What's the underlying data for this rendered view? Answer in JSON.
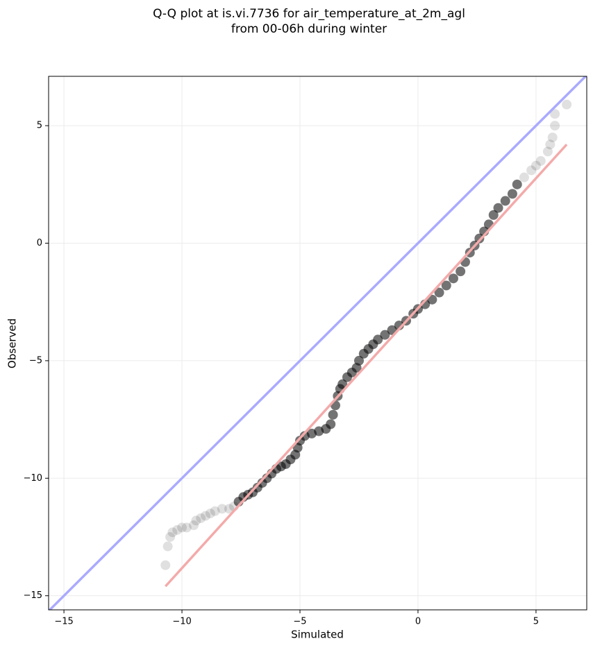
{
  "chart_data": {
    "type": "scatter",
    "title": "Q-Q plot at is.vi.7736 for air_temperature_at_2m_agl",
    "subtitle": "from 00-06h during winter",
    "x_label": "Simulated",
    "y_label": "Observed",
    "xlim": [
      -15.65,
      7.15
    ],
    "ylim": [
      -15.6,
      7.1
    ],
    "xticks": [
      {
        "value": -15,
        "label": "−15"
      },
      {
        "value": -10,
        "label": "−10"
      },
      {
        "value": -5,
        "label": "−5"
      },
      0,
      5
    ],
    "yticks": [
      {
        "value": -15,
        "label": "−15"
      },
      {
        "value": -10,
        "label": "−10"
      },
      {
        "value": -5,
        "label": "−5"
      },
      0,
      5
    ],
    "grid": true,
    "points": {
      "color": "#000000",
      "x": [
        -10.7,
        -10.6,
        -10.5,
        -10.4,
        -10.2,
        -10.0,
        -9.8,
        -9.5,
        -9.4,
        -9.2,
        -9.0,
        -8.8,
        -8.6,
        -8.3,
        -8.0,
        -7.8,
        -7.6,
        -7.4,
        -7.2,
        -7.0,
        -6.8,
        -6.6,
        -6.4,
        -6.2,
        -6.0,
        -5.8,
        -5.6,
        -5.4,
        -5.2,
        -5.1,
        -5.0,
        -4.8,
        -4.5,
        -4.2,
        -3.9,
        -3.7,
        -3.6,
        -3.5,
        -3.4,
        -3.3,
        -3.2,
        -3.0,
        -2.8,
        -2.6,
        -2.5,
        -2.3,
        -2.1,
        -1.9,
        -1.7,
        -1.4,
        -1.1,
        -0.8,
        -0.5,
        -0.2,
        0.0,
        0.3,
        0.6,
        0.9,
        1.2,
        1.5,
        1.8,
        2.0,
        2.2,
        2.4,
        2.6,
        2.8,
        3.0,
        3.2,
        3.4,
        3.7,
        4.0,
        4.2,
        4.5,
        4.8,
        5.0,
        5.2,
        5.5,
        5.6,
        5.7,
        5.8,
        5.8,
        6.3
      ],
      "y": [
        -13.7,
        -12.9,
        -12.5,
        -12.3,
        -12.2,
        -12.1,
        -12.1,
        -12.0,
        -11.8,
        -11.7,
        -11.6,
        -11.5,
        -11.4,
        -11.3,
        -11.3,
        -11.2,
        -11.0,
        -10.8,
        -10.7,
        -10.6,
        -10.4,
        -10.2,
        -10.0,
        -9.8,
        -9.6,
        -9.5,
        -9.4,
        -9.2,
        -9.0,
        -8.7,
        -8.4,
        -8.2,
        -8.1,
        -8.0,
        -7.9,
        -7.7,
        -7.3,
        -6.9,
        -6.5,
        -6.2,
        -6.0,
        -5.7,
        -5.5,
        -5.3,
        -5.0,
        -4.7,
        -4.5,
        -4.3,
        -4.1,
        -3.9,
        -3.7,
        -3.5,
        -3.3,
        -3.0,
        -2.8,
        -2.6,
        -2.4,
        -2.1,
        -1.8,
        -1.5,
        -1.2,
        -0.8,
        -0.4,
        -0.1,
        0.2,
        0.5,
        0.8,
        1.2,
        1.5,
        1.8,
        2.1,
        2.5,
        2.8,
        3.1,
        3.3,
        3.5,
        3.9,
        4.2,
        4.5,
        5.0,
        5.5,
        5.9
      ]
    },
    "lines": [
      {
        "color": "#aaaaff",
        "x": [
          -15.65,
          7.15
        ],
        "y": [
          -15.65,
          7.15
        ]
      },
      {
        "color": "#f4aaaa",
        "x": [
          -10.7,
          6.3
        ],
        "y": [
          -14.6,
          4.2
        ]
      }
    ]
  }
}
